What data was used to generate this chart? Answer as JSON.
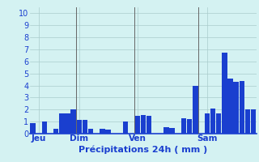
{
  "title": "",
  "xlabel": "Précipitations 24h ( mm )",
  "ylabel": "",
  "background_color": "#d4f2f2",
  "bar_color": "#1a3fcf",
  "grid_color": "#aacccc",
  "ylim": [
    0,
    10.5
  ],
  "yticks": [
    0,
    1,
    2,
    3,
    4,
    5,
    6,
    7,
    8,
    9,
    10
  ],
  "bar_values": [
    0.9,
    0.0,
    1.0,
    0.0,
    0.4,
    1.65,
    1.65,
    2.0,
    1.15,
    1.15,
    0.4,
    0.0,
    0.4,
    0.35,
    0.0,
    0.0,
    1.0,
    0.0,
    1.5,
    1.55,
    1.5,
    0.0,
    0.0,
    0.55,
    0.5,
    0.0,
    1.3,
    1.2,
    4.0,
    0.0,
    1.65,
    2.1,
    1.7,
    6.7,
    4.6,
    4.3,
    4.35,
    2.0,
    2.0
  ],
  "day_labels": [
    "Jeu",
    "Dim",
    "Ven",
    "Sam"
  ],
  "day_positions": [
    1,
    8,
    18,
    30
  ],
  "vline_positions": [
    7.5,
    17.5,
    28.5
  ],
  "tick_color": "#1a3fcf",
  "label_color": "#1a3fcf",
  "vline_color": "#666666",
  "xlabel_fontsize": 8,
  "ytick_fontsize": 7,
  "xtick_fontsize": 7.5
}
